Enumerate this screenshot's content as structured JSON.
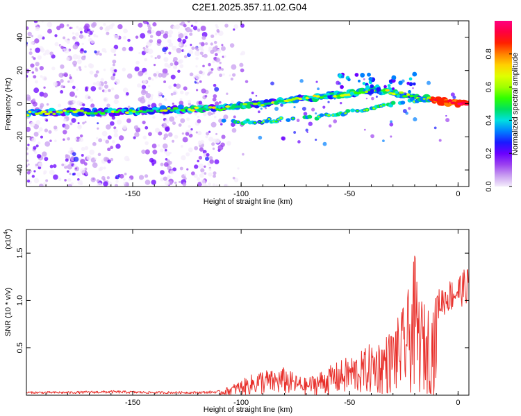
{
  "title": "C2E1.2025.357.11.02.G04",
  "chart_data": [
    {
      "type": "heatmap",
      "name": "spectrogram",
      "xlabel": "Height of straight line (km)",
      "ylabel": "Frequency (Hz)",
      "xlim": [
        -199,
        5
      ],
      "ylim": [
        -50,
        50
      ],
      "xticks": [
        -150,
        -100,
        -50,
        0
      ],
      "xtick_labels": [
        "-150",
        "-100",
        "-50",
        "0"
      ],
      "yticks": [
        -40,
        -20,
        0,
        20,
        40
      ],
      "ytick_labels": [
        "-40",
        "-20",
        "0",
        "20",
        "40"
      ],
      "colorbar": {
        "label": "Normalized spectral amplitude",
        "range": [
          0,
          1
        ],
        "ticks": [
          0.0,
          0.2,
          0.4,
          0.6,
          0.8
        ],
        "tick_labels": [
          "0.0",
          "0.2",
          "0.4",
          "0.6",
          "0.8"
        ],
        "colors": [
          "#f4ecfb",
          "#c89df0",
          "#9b40f0",
          "#6a00ff",
          "#1a1aff",
          "#0080ff",
          "#00e0e0",
          "#00e060",
          "#30ff00",
          "#a0ff00",
          "#e0ff00",
          "#ffd000",
          "#ff8000",
          "#ff2000",
          "#ff0040",
          "#ff0080"
        ]
      },
      "ridge": {
        "x": [
          -199,
          -180,
          -160,
          -140,
          -120,
          -110,
          -100,
          -90,
          -80,
          -70,
          -60,
          -50,
          -40,
          -30,
          -20,
          -10,
          0,
          5
        ],
        "y": [
          -6,
          -5,
          -5,
          -4,
          -3,
          -3,
          -1,
          0,
          2,
          3,
          5,
          6,
          8,
          7,
          4,
          2,
          0,
          0
        ]
      },
      "secondary_ridge": {
        "x": [
          -108,
          -95,
          -85,
          -75,
          -65,
          -55,
          -45,
          -35,
          -25,
          -15
        ],
        "y": [
          -11,
          -11,
          -10,
          -9,
          -8,
          -6,
          -4,
          -1,
          1,
          3
        ]
      }
    },
    {
      "type": "line",
      "name": "snr",
      "xlabel": "Height of straight line (km)",
      "ylabel": "SNR (10 * v/v)",
      "multiplier": "(x10",
      "multiplier_exp": "4",
      "multiplier_close": ")",
      "xlim": [
        -199,
        5
      ],
      "ylim": [
        0,
        1.75
      ],
      "xticks": [
        -150,
        -100,
        -50,
        0
      ],
      "xtick_labels": [
        "-150",
        "-100",
        "-50",
        "0"
      ],
      "yticks": [
        0.5,
        1.0,
        1.5
      ],
      "ytick_labels": [
        "0.5",
        "1.0",
        "1.5"
      ],
      "color": "#e8302b",
      "envelope": {
        "x": [
          -199,
          -180,
          -160,
          -140,
          -120,
          -110,
          -105,
          -100,
          -95,
          -90,
          -85,
          -80,
          -75,
          -70,
          -65,
          -60,
          -55,
          -50,
          -45,
          -40,
          -35,
          -30,
          -25,
          -22,
          -20,
          -18,
          -15,
          -10,
          -5,
          0,
          5
        ],
        "y": [
          0.04,
          0.04,
          0.05,
          0.04,
          0.04,
          0.05,
          0.1,
          0.16,
          0.22,
          0.28,
          0.26,
          0.3,
          0.22,
          0.18,
          0.24,
          0.3,
          0.36,
          0.42,
          0.46,
          0.56,
          0.6,
          0.72,
          0.95,
          1.2,
          1.5,
          1.1,
          0.95,
          1.05,
          1.15,
          1.22,
          1.3
        ]
      }
    }
  ]
}
